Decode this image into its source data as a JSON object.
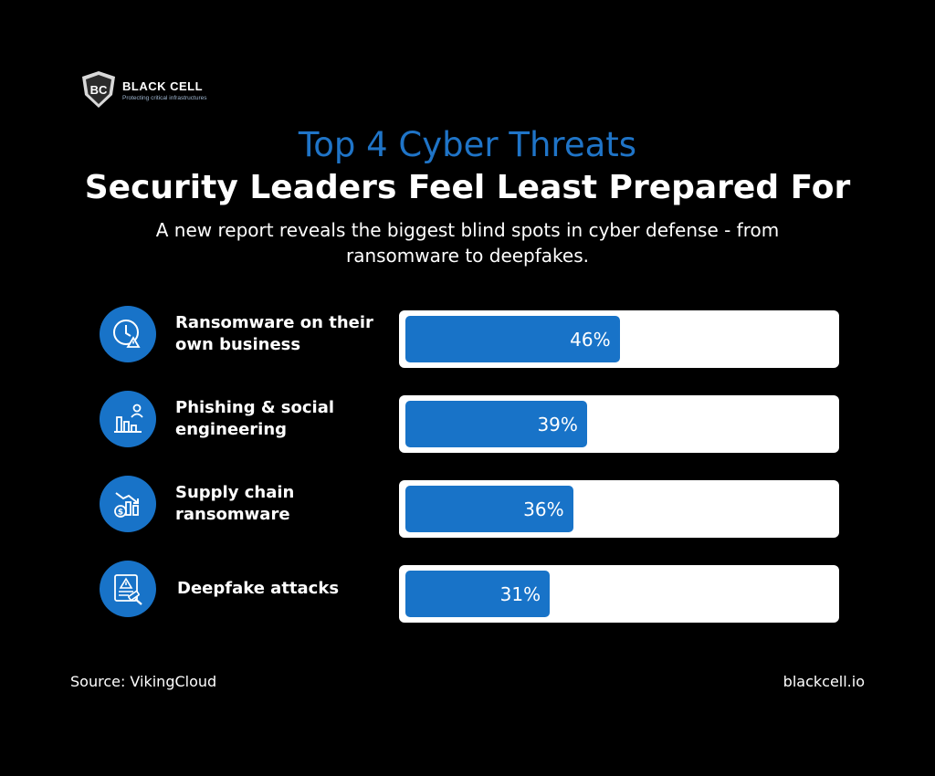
{
  "brand": {
    "name": "BLACK CELL",
    "tagline": "Protecting critical infrastructures",
    "logo_icon": "bc-shield-logo-icon"
  },
  "title_line1": "Top 4 Cyber Threats",
  "title_line2": "Security Leaders Feel Least Prepared For",
  "subtitle": "A new report reveals the biggest blind spots in cyber defense - from ransomware to deepfakes.",
  "colors": {
    "background": "#000000",
    "accent": "#1f74c7",
    "bar": "#1873c8",
    "track": "#ffffff"
  },
  "chart_data": {
    "type": "bar",
    "orientation": "horizontal",
    "categories": [
      "Ransomware on their own business",
      "Phishing & social engineering",
      "Supply chain ransomware",
      "Deepfake attacks"
    ],
    "values": [
      46,
      39,
      36,
      31
    ],
    "value_labels": [
      "46%",
      "39%",
      "36%",
      "31%"
    ],
    "icons": [
      "clock-warning-icon",
      "chart-decline-person-icon",
      "money-decline-chart-icon",
      "document-warning-gavel-icon"
    ],
    "xlim": [
      0,
      100
    ],
    "unit": "%"
  },
  "footer": {
    "source": "Source: VikingCloud",
    "site": "blackcell.io"
  }
}
